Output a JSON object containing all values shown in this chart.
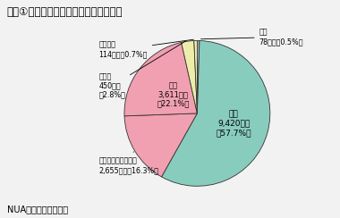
{
  "title": "図表①　世界のインターネット利用者数",
  "footnote": "NUA社資料により作成",
  "bg_color": "#F2F2F2",
  "slices_ordered": [
    {
      "label": "中東",
      "value": 0.5,
      "color": "#AABBD8"
    },
    {
      "label": "北米",
      "value": 57.7,
      "color": "#88CCBE"
    },
    {
      "label": "アジア・オセアニア",
      "value": 16.3,
      "color": "#F0A0B0"
    },
    {
      "label": "欧州",
      "value": 22.1,
      "color": "#F0A0B0"
    },
    {
      "label": "中南米",
      "value": 2.8,
      "color": "#EEEEAA"
    },
    {
      "label": "アフリカ",
      "value": 0.7,
      "color": "#EEEEAA"
    }
  ]
}
